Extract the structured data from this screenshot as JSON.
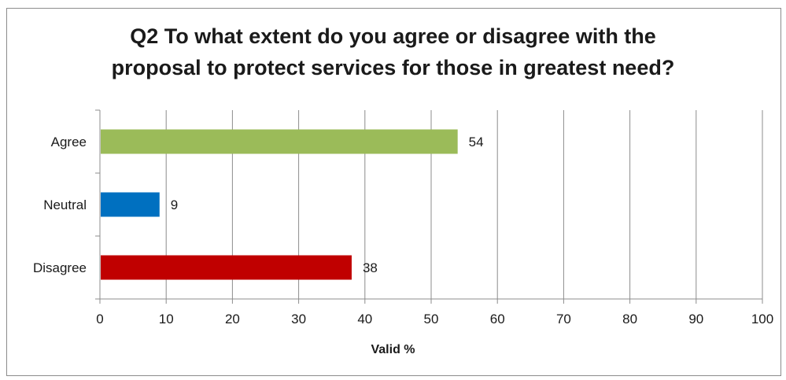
{
  "chart_data": {
    "type": "bar",
    "orientation": "horizontal",
    "title_lines": [
      "Q2 To what extent do you agree or disagree with the",
      "proposal to protect services for those in greatest need?"
    ],
    "categories": [
      "Agree",
      "Neutral",
      "Disagree"
    ],
    "values": [
      54,
      9,
      38
    ],
    "colors": [
      "#9bbb59",
      "#0070c0",
      "#c00000"
    ],
    "xlabel": "Valid %",
    "ylabel": "",
    "xlim": [
      0,
      100
    ],
    "xticks": [
      "0",
      "10",
      "20",
      "30",
      "40",
      "50",
      "60",
      "70",
      "80",
      "90",
      "100"
    ],
    "data_labels": [
      "54",
      "9",
      "38"
    ],
    "grid": "vertical",
    "legend": "none"
  }
}
